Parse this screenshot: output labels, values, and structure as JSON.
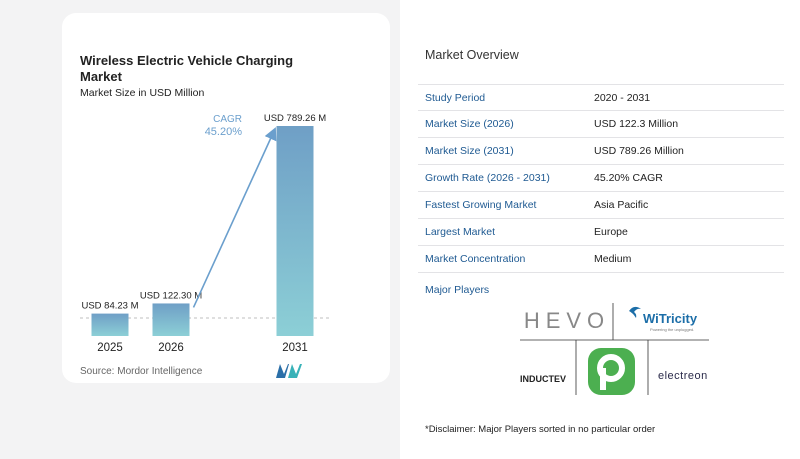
{
  "chart_data": {
    "type": "bar",
    "title": "Wireless Electric Vehicle Charging Market",
    "subtitle": "Market Size in USD Million",
    "categories": [
      "2025",
      "2026",
      "2031"
    ],
    "values": [
      84.23,
      122.3,
      789.26
    ],
    "value_labels": [
      "USD 84.23 M",
      "USD 122.30 M",
      "USD 789.26 M"
    ],
    "cagr_label": "CAGR",
    "cagr_value": "45.20%",
    "source": "Source: Mordor Intelligence",
    "colors": {
      "bar_top": "#6f9fc6",
      "bar_bottom": "#8ccfd6",
      "arrow": "#6b9fcd",
      "cagr_text": "#6b9fcd"
    }
  },
  "overview": {
    "title": "Market Overview",
    "rows": [
      {
        "label": "Study Period",
        "value": "2020 - 2031"
      },
      {
        "label": "Market Size (2026)",
        "value": "USD 122.3 Million"
      },
      {
        "label": "Market Size (2031)",
        "value": "USD 789.26 Million"
      },
      {
        "label": "Growth Rate (2026 - 2031)",
        "value": "45.20% CAGR"
      },
      {
        "label": "Fastest Growing Market",
        "value": "Asia Pacific"
      },
      {
        "label": "Largest Market",
        "value": "Europe"
      },
      {
        "label": "Market Concentration",
        "value": "Medium"
      }
    ]
  },
  "players": {
    "title": "Major Players",
    "names": [
      "HEVO",
      "WiTricity",
      "INDUCTEV",
      "Plugless",
      "electreon"
    ],
    "logo_text": {
      "hevo": "HEVO",
      "witricity": "WiTricity",
      "witricity_tagline": "Powering the unplugged.",
      "inductev": "INDUCTEV",
      "electreon": "electreon"
    },
    "disclaimer": "*Disclaimer: Major Players sorted in no particular order"
  }
}
